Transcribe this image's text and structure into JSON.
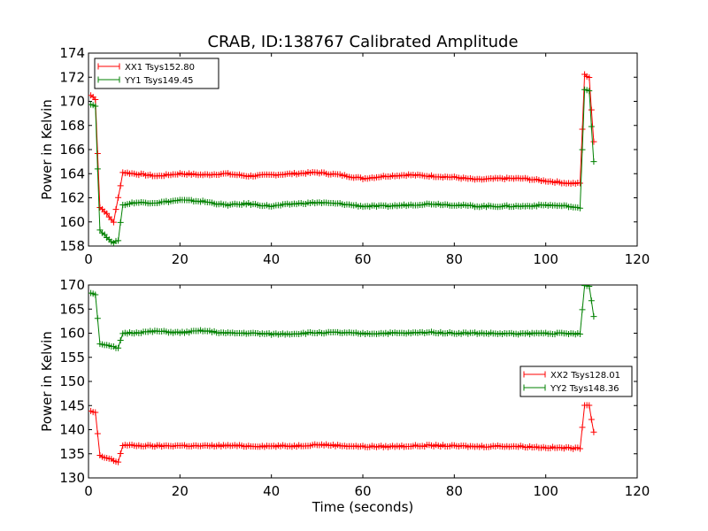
{
  "figure": {
    "title": "CRAB, ID:138767 Calibrated Amplitude",
    "xlabel": "Time (seconds)"
  },
  "chart_data": [
    {
      "type": "line",
      "title": "CRAB, ID:138767 Calibrated Amplitude",
      "xlabel": "",
      "ylabel": "Power in Kelvin",
      "xlim": [
        0,
        120
      ],
      "ylim": [
        158,
        174
      ],
      "xticks": [
        0,
        20,
        40,
        60,
        80,
        100,
        120
      ],
      "yticks": [
        158,
        160,
        162,
        164,
        166,
        168,
        170,
        172,
        174
      ],
      "grid": false,
      "legend_position": "top-left",
      "series": [
        {
          "name": "XX1 Tsys152.80",
          "color": "#ff0000",
          "marker": "plus",
          "x": [
            0.5,
            1.5,
            2.5,
            3.5,
            4.5,
            5.5,
            6.5,
            7.5,
            10,
            15,
            20,
            25,
            30,
            35,
            40,
            45,
            50,
            55,
            60,
            65,
            70,
            75,
            80,
            85,
            90,
            95,
            100,
            105,
            107.5,
            108.5,
            109.5,
            110.5
          ],
          "y": [
            170.5,
            170.2,
            161.2,
            160.9,
            160.4,
            160.0,
            162.0,
            164.1,
            164.0,
            163.8,
            164.0,
            163.9,
            164.0,
            163.8,
            163.9,
            164.0,
            164.1,
            163.9,
            163.6,
            163.8,
            163.9,
            163.8,
            163.7,
            163.5,
            163.6,
            163.6,
            163.4,
            163.2,
            163.2,
            172.2,
            172.0,
            166.6
          ]
        },
        {
          "name": "YY1 Tsys149.45",
          "color": "#008000",
          "marker": "plus",
          "x": [
            0.5,
            1.5,
            2.5,
            3.5,
            4.5,
            5.5,
            6.5,
            7.5,
            10,
            15,
            20,
            25,
            30,
            35,
            40,
            45,
            50,
            55,
            60,
            65,
            70,
            75,
            80,
            85,
            90,
            95,
            100,
            105,
            107.5,
            108.5,
            109.5,
            110.5
          ],
          "y": [
            169.8,
            169.6,
            159.3,
            158.9,
            158.6,
            158.2,
            158.5,
            161.4,
            161.6,
            161.6,
            161.8,
            161.7,
            161.4,
            161.5,
            161.3,
            161.5,
            161.6,
            161.5,
            161.3,
            161.3,
            161.4,
            161.5,
            161.4,
            161.3,
            161.3,
            161.3,
            161.4,
            161.3,
            161.1,
            171.0,
            170.9,
            165.0
          ]
        }
      ]
    },
    {
      "type": "line",
      "title": "",
      "xlabel": "Time (seconds)",
      "ylabel": "Power in Kelvin",
      "xlim": [
        0,
        120
      ],
      "ylim": [
        130,
        170
      ],
      "xticks": [
        0,
        20,
        40,
        60,
        80,
        100,
        120
      ],
      "yticks": [
        130,
        135,
        140,
        145,
        150,
        155,
        160,
        165,
        170
      ],
      "grid": false,
      "legend_position": "center-right",
      "series": [
        {
          "name": "XX2 Tsys128.01",
          "color": "#ff0000",
          "marker": "plus",
          "x": [
            0.5,
            1.5,
            2.5,
            3.5,
            4.5,
            5.5,
            6.5,
            7.5,
            10,
            15,
            20,
            25,
            30,
            35,
            40,
            45,
            50,
            55,
            60,
            65,
            70,
            75,
            80,
            85,
            90,
            95,
            100,
            105,
            107.5,
            108.5,
            109.5,
            110.5
          ],
          "y": [
            143.8,
            143.5,
            134.6,
            134.2,
            134.0,
            133.6,
            133.3,
            136.8,
            136.7,
            136.6,
            136.7,
            136.6,
            136.7,
            136.6,
            136.6,
            136.6,
            136.9,
            136.7,
            136.5,
            136.5,
            136.6,
            136.7,
            136.6,
            136.5,
            136.6,
            136.5,
            136.3,
            136.2,
            136.1,
            145.2,
            145.0,
            139.5
          ]
        },
        {
          "name": "YY2 Tsys148.36",
          "color": "#008000",
          "marker": "plus",
          "x": [
            0.5,
            1.5,
            2.5,
            3.5,
            4.5,
            5.5,
            6.5,
            7.5,
            10,
            15,
            20,
            25,
            30,
            35,
            40,
            45,
            50,
            55,
            60,
            65,
            70,
            75,
            80,
            85,
            90,
            95,
            100,
            105,
            107.5,
            108.5,
            109.5,
            110.5
          ],
          "y": [
            168.4,
            168.1,
            157.9,
            157.6,
            157.3,
            157.1,
            156.8,
            160.0,
            160.1,
            160.4,
            160.1,
            160.5,
            160.0,
            160.0,
            159.8,
            159.9,
            160.1,
            160.1,
            159.9,
            160.0,
            160.0,
            160.2,
            160.0,
            160.0,
            159.9,
            159.9,
            160.0,
            159.9,
            159.8,
            169.9,
            169.7,
            163.6
          ]
        }
      ]
    }
  ]
}
